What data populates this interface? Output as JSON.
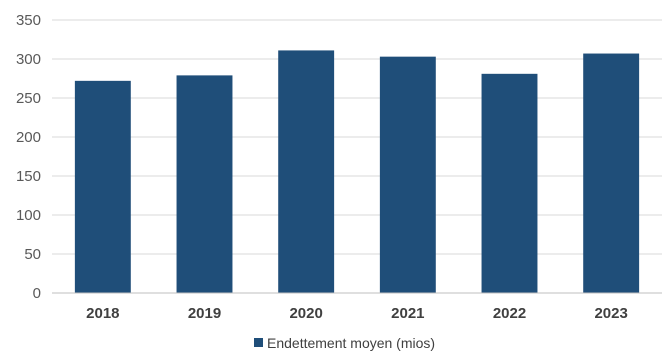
{
  "chart_data": {
    "type": "bar",
    "categories": [
      "2018",
      "2019",
      "2020",
      "2021",
      "2022",
      "2023"
    ],
    "series": [
      {
        "name": "Endettement moyen (mios)",
        "values": [
          272,
          279,
          311,
          303,
          281,
          307
        ]
      }
    ],
    "ylim": [
      0,
      350
    ],
    "yticks": [
      "0",
      "50",
      "100",
      "150",
      "200",
      "250",
      "300",
      "350"
    ],
    "grid": true,
    "legend_position": "bottom",
    "bar_color": "#1f4e79"
  }
}
